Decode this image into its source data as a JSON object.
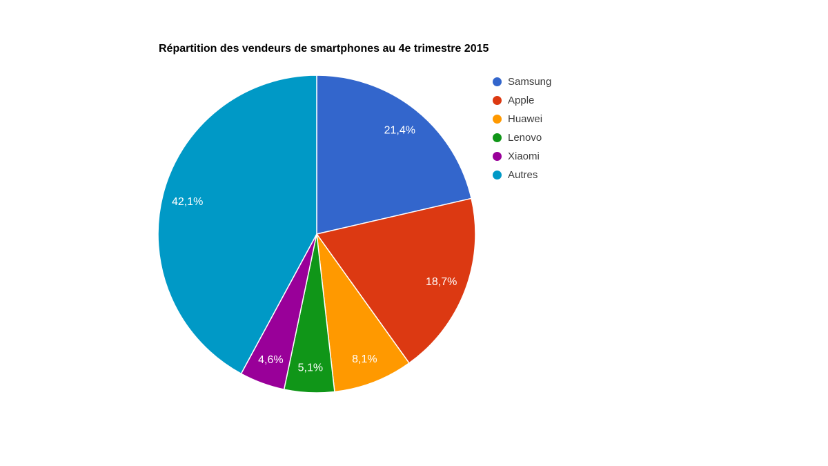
{
  "title": "Répartition des vendeurs de smartphones au 4e trimestre 2015",
  "chart_data": {
    "type": "pie",
    "title": "Répartition des vendeurs de smartphones au 4e trimestre 2015",
    "categories": [
      "Samsung",
      "Apple",
      "Huawei",
      "Lenovo",
      "Xiaomi",
      "Autres"
    ],
    "values": [
      21.4,
      18.7,
      8.1,
      5.1,
      4.6,
      42.1
    ],
    "value_labels": [
      "21,4%",
      "18,7%",
      "8,1%",
      "5,1%",
      "4,6%",
      "42,1%"
    ],
    "colors": [
      "#3366CC",
      "#DC3912",
      "#FF9900",
      "#109618",
      "#990099",
      "#0099C6"
    ],
    "start_angle_deg": 0,
    "direction": "clockwise",
    "legend_position": "right",
    "slice_border_color": "#ffffff",
    "label_color": "#ffffff",
    "legend_text_color": "#3c3c3c",
    "title_color": "#000000",
    "background_color": "#ffffff"
  }
}
